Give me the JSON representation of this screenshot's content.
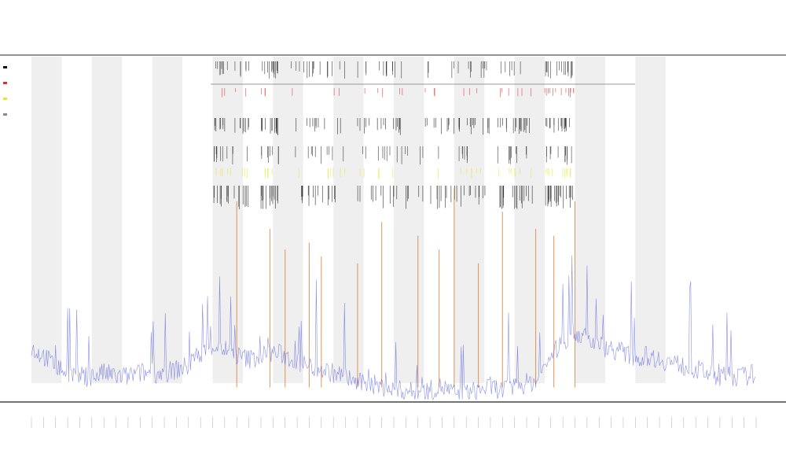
{
  "chart_data": {
    "type": "line",
    "title": "",
    "subtitle": "",
    "xlabel": "",
    "ylabel": "",
    "grid": false,
    "band_stripes": true,
    "legend_placement": "top-left",
    "x_range": [
      0,
      240
    ],
    "y_range": [
      0,
      100
    ],
    "series": [
      {
        "color": "#2b35d6",
        "role": "baseline-trace",
        "x": [
          0,
          4,
          8,
          12,
          16,
          20,
          24,
          28,
          32,
          36,
          40,
          44,
          48,
          52,
          56,
          60,
          64,
          68,
          72,
          76,
          80,
          84,
          88,
          92,
          96,
          100,
          104,
          108,
          112,
          116,
          120,
          124,
          128,
          132,
          136,
          140,
          144,
          148,
          152,
          156,
          160,
          164,
          168,
          172,
          176,
          180,
          184,
          188,
          192,
          196,
          200,
          204,
          208,
          212,
          216,
          220,
          224,
          228,
          232,
          236,
          240
        ],
        "values": [
          14,
          12,
          9,
          7,
          6,
          6,
          7,
          6,
          6,
          7,
          7,
          7,
          8,
          9,
          13,
          15,
          14,
          12,
          11,
          12,
          13,
          12,
          10,
          9,
          8,
          7,
          6,
          4,
          4,
          3,
          2,
          2,
          1,
          2,
          3,
          1,
          1,
          2,
          3,
          2,
          3,
          4,
          5,
          12,
          16,
          19,
          17,
          15,
          14,
          13,
          11,
          12,
          11,
          10,
          9,
          8,
          7,
          6,
          6,
          6,
          7
        ]
      },
      {
        "color": "#d9762c",
        "role": "event-spikes",
        "x": [
          68,
          79,
          84,
          92,
          96,
          108,
          116,
          128,
          135,
          140,
          148,
          156,
          167,
          173,
          180
        ],
        "values": [
          58,
          50,
          44,
          46,
          42,
          40,
          52,
          48,
          44,
          62,
          40,
          55,
          50,
          48,
          58
        ]
      }
    ],
    "event_markers": [
      {
        "color": "#111111"
      },
      {
        "color": "#d93030"
      },
      {
        "color": "#e6e62a"
      },
      {
        "color": "#8a8a8a"
      }
    ],
    "bands": [
      {
        "x0": 0,
        "x1": 10
      },
      {
        "x0": 20,
        "x1": 30
      },
      {
        "x0": 40,
        "x1": 50
      },
      {
        "x0": 60,
        "x1": 70
      },
      {
        "x0": 80,
        "x1": 90
      },
      {
        "x0": 100,
        "x1": 110
      },
      {
        "x0": 120,
        "x1": 130
      },
      {
        "x0": 140,
        "x1": 150
      },
      {
        "x0": 160,
        "x1": 170
      },
      {
        "x0": 180,
        "x1": 190
      },
      {
        "x0": 200,
        "x1": 210
      }
    ]
  }
}
